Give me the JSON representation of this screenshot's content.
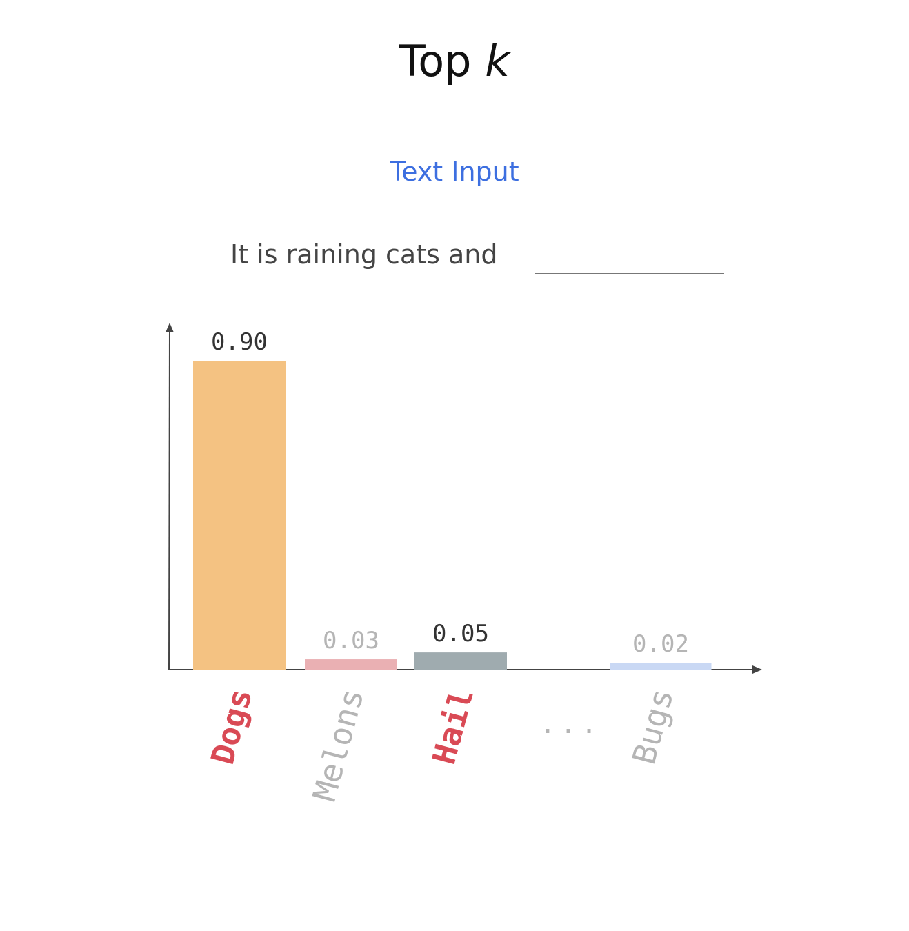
{
  "title": {
    "main": "Top",
    "italic": "k"
  },
  "subtitle": "Text Input",
  "prompt": "It is raining cats and",
  "colors": {
    "subtitle": "#3d6fe0",
    "axis": "#444444",
    "highlight_label": "#d94a55",
    "muted_label": "#b5b5b5"
  },
  "chart_data": {
    "type": "bar",
    "categories": [
      "Dogs",
      "Melons",
      "Hail",
      "...",
      "Bugs"
    ],
    "values": [
      0.9,
      0.03,
      0.05,
      null,
      0.02
    ],
    "value_labels": [
      "0.90",
      "0.03",
      "0.05",
      "",
      "0.02"
    ],
    "bar_colors": [
      "#f4c282",
      "#eab0b3",
      "#9fabaf",
      "",
      "#c9d8f4"
    ],
    "label_colors": [
      "#d94a55",
      "#b5b5b5",
      "#d94a55",
      "#b5b5b5",
      "#b5b5b5"
    ],
    "value_label_colors": [
      "#333333",
      "#b5b5b5",
      "#333333",
      "",
      "#b5b5b5"
    ],
    "ellipsis": "...",
    "ylim": [
      0,
      0.9
    ],
    "grid": false
  }
}
